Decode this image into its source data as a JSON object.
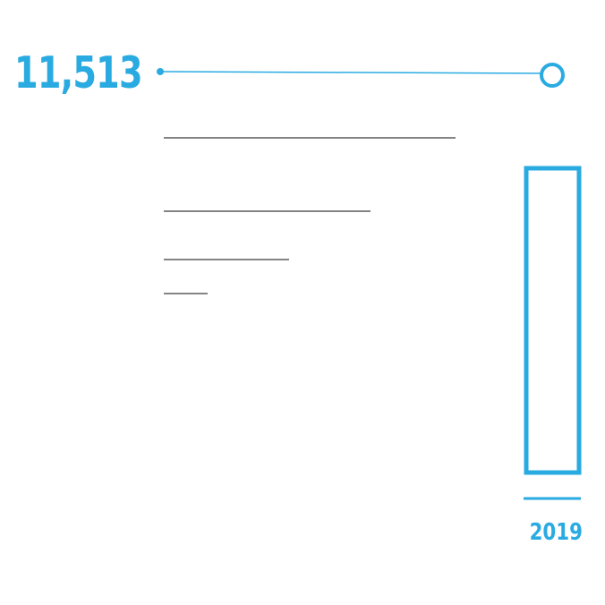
{
  "chart_data": {
    "type": "bar",
    "headline_value": "11,513",
    "categories": [
      "2019"
    ],
    "values": [
      11513
    ],
    "accent_color": "#29abe2",
    "rule_color": "#3a3a3a",
    "bar_style": "outlined"
  }
}
